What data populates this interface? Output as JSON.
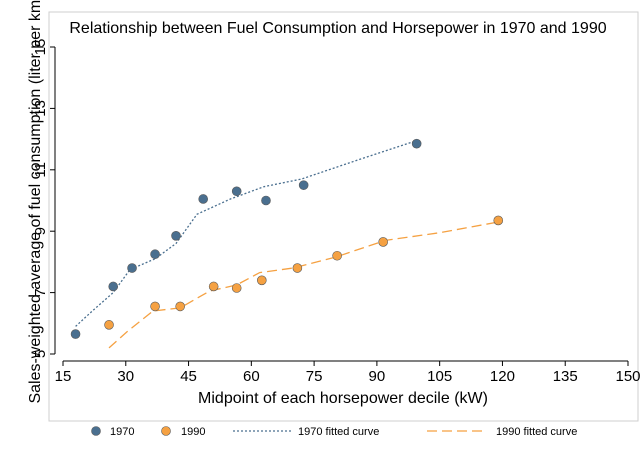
{
  "chart_data": {
    "type": "scatter",
    "title": "Relationship between Fuel Consumption and Horsepower in 1970 and 1990",
    "xlabel": "Midpoint of each horsepower decile (kW)",
    "ylabel": "Sales-weighted average of fuel consumption (liter per km)",
    "xlim": [
      15,
      150
    ],
    "ylim": [
      5,
      15
    ],
    "x_ticks": [
      15,
      30,
      45,
      60,
      75,
      90,
      105,
      120,
      135,
      150
    ],
    "y_ticks": [
      5,
      7,
      9,
      11,
      13,
      15
    ],
    "grid": false,
    "legend_position": "bottom",
    "series": [
      {
        "name": "1970",
        "kind": "scatter",
        "color": "#4a6f8f",
        "points": [
          [
            18,
            5.65
          ],
          [
            27,
            7.2
          ],
          [
            31.5,
            7.8
          ],
          [
            37,
            8.25
          ],
          [
            42,
            8.85
          ],
          [
            48.5,
            10.05
          ],
          [
            56.5,
            10.3
          ],
          [
            63.5,
            10.0
          ],
          [
            72.5,
            10.5
          ],
          [
            99.5,
            11.85
          ]
        ]
      },
      {
        "name": "1990",
        "kind": "scatter",
        "color": "#f5a142",
        "points": [
          [
            26,
            5.95
          ],
          [
            37,
            6.55
          ],
          [
            43,
            6.55
          ],
          [
            51,
            7.2
          ],
          [
            56.5,
            7.15
          ],
          [
            62.5,
            7.4
          ],
          [
            71,
            7.8
          ],
          [
            80.5,
            8.2
          ],
          [
            91.5,
            8.65
          ],
          [
            119,
            9.35
          ]
        ]
      },
      {
        "name": "1970 fitted curve",
        "kind": "line",
        "style": "dotted",
        "color": "#4a6f8f",
        "points": [
          [
            18,
            5.9
          ],
          [
            22,
            6.4
          ],
          [
            27,
            7.0
          ],
          [
            31,
            7.75
          ],
          [
            37,
            8.1
          ],
          [
            42,
            8.6
          ],
          [
            47,
            9.55
          ],
          [
            55,
            10.05
          ],
          [
            63,
            10.45
          ],
          [
            72,
            10.7
          ],
          [
            85,
            11.3
          ],
          [
            99.5,
            11.95
          ]
        ]
      },
      {
        "name": "1990 fitted curve",
        "kind": "line",
        "style": "dashed",
        "color": "#f5a142",
        "points": [
          [
            26,
            5.2
          ],
          [
            30.5,
            5.75
          ],
          [
            36.5,
            6.4
          ],
          [
            43,
            6.5
          ],
          [
            50,
            7.05
          ],
          [
            56.5,
            7.25
          ],
          [
            62,
            7.65
          ],
          [
            70,
            7.8
          ],
          [
            80,
            8.15
          ],
          [
            92,
            8.7
          ],
          [
            105,
            8.95
          ],
          [
            119,
            9.3
          ]
        ]
      }
    ]
  }
}
